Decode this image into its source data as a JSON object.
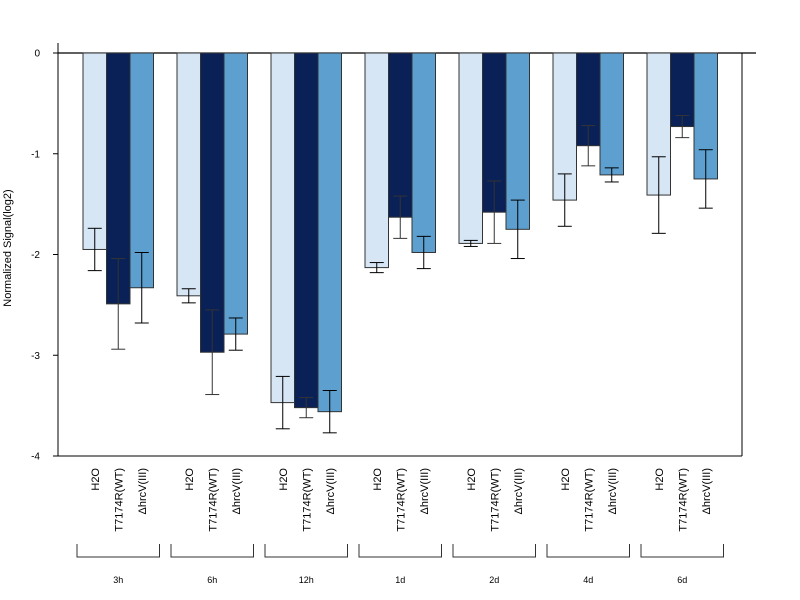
{
  "chart_data": {
    "type": "bar",
    "ylabel": "Normalized Signal(log2)",
    "ylim": [
      -4,
      0.1
    ],
    "yticks": [
      "0",
      "-1",
      "-2",
      "-3",
      "-4"
    ],
    "groups": [
      "3h",
      "6h",
      "12h",
      "1d",
      "2d",
      "4d",
      "6d"
    ],
    "bar_labels": [
      "H2O",
      "T7174R(WT)",
      "ΔhrcV(III)"
    ],
    "series": [
      {
        "name": "H2O",
        "color": "#d6e6f5",
        "values": [
          -1.95,
          -2.41,
          -3.47,
          -2.13,
          -1.89,
          -1.46,
          -1.41
        ],
        "errors": [
          0.21,
          0.07,
          0.26,
          0.05,
          0.03,
          0.26,
          0.38
        ]
      },
      {
        "name": "T7174R(WT)",
        "color": "#0a2157",
        "values": [
          -2.49,
          -2.97,
          -3.52,
          -1.63,
          -1.58,
          -0.92,
          -0.73
        ],
        "errors": [
          0.45,
          0.42,
          0.1,
          0.21,
          0.31,
          0.2,
          0.11
        ]
      },
      {
        "name": "ΔhrcV(III)",
        "color": "#5da0d0",
        "values": [
          -2.33,
          -2.79,
          -3.56,
          -1.98,
          -1.75,
          -1.21,
          -1.25
        ],
        "errors": [
          0.35,
          0.16,
          0.21,
          0.16,
          0.29,
          0.07,
          0.29
        ]
      }
    ],
    "colors": {
      "outline": "#333333",
      "axis": "#000000",
      "errorbar": "#000000"
    },
    "grid": false,
    "legend": "none"
  }
}
